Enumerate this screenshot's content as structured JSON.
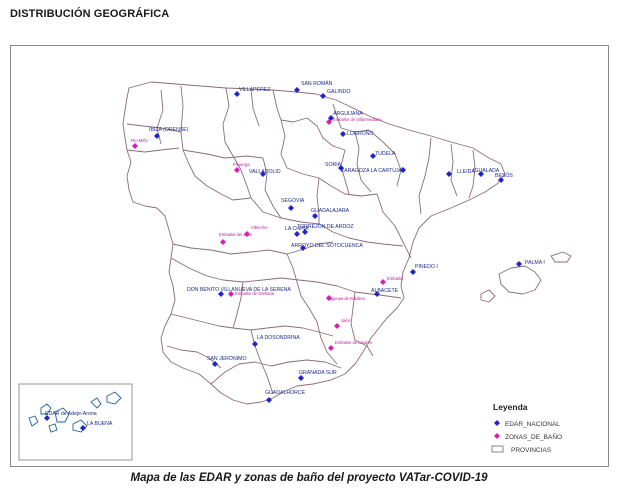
{
  "page": {
    "heading": "DISTRIBUCIÓN GEOGRÁFICA",
    "caption": "Mapa de las EDAR y zonas de baño del proyecto VATar-COVID-19"
  },
  "colors": {
    "edar": "#1e24c8",
    "bath": "#d81fb0",
    "province_border": "#8c6a7a",
    "frame": "#8a8a8a"
  },
  "legend": {
    "title": "Leyenda",
    "items": [
      {
        "label": "EDAR_NACIONAL",
        "symbol": "diamond-blue"
      },
      {
        "label": "ZONAS_DE_BAÑO",
        "symbol": "diamond-magenta"
      },
      {
        "label": "PROVINCIAS",
        "symbol": "empty-rectangle"
      }
    ]
  },
  "edar_labels": [
    "VILLAPEREZ",
    "SAN ROMÁN",
    "GALINDO",
    "ARGUIJANA",
    "LOGROÑO",
    "IBIZA (ORENSE)",
    "VALLADOLID",
    "SORIA",
    "TUDELA",
    "ZARAGOZA LA CARTUJA",
    "LLEIDA",
    "IGUALADA",
    "BESÓS",
    "SEGOVIA",
    "GUADALAJARA",
    "LA CHINA",
    "TORREJÓN DE ARDOZ",
    "ARROYO DEL SOTOCUENCA",
    "PALMA I",
    "PINEDO I",
    "DON BENITO VILLANUEVA DE LA SERENA",
    "ALBACETE",
    "LA DOSONDRINA",
    "SAN JERÓNIMO",
    "GRANADA SUR",
    "GUADALHORCE",
    "EDAR de Adeje-Arona",
    "LA BUENA"
  ],
  "bath_labels": [
    "Río Miño",
    "Embalse de Villarmediano",
    "Pisuerga",
    "Embalse del Juan",
    "Alberche",
    "Embalse de Orellana",
    "Lagunas de Ruidera",
    "Jaén",
    "Embalse de Linares",
    "Embalse"
  ]
}
